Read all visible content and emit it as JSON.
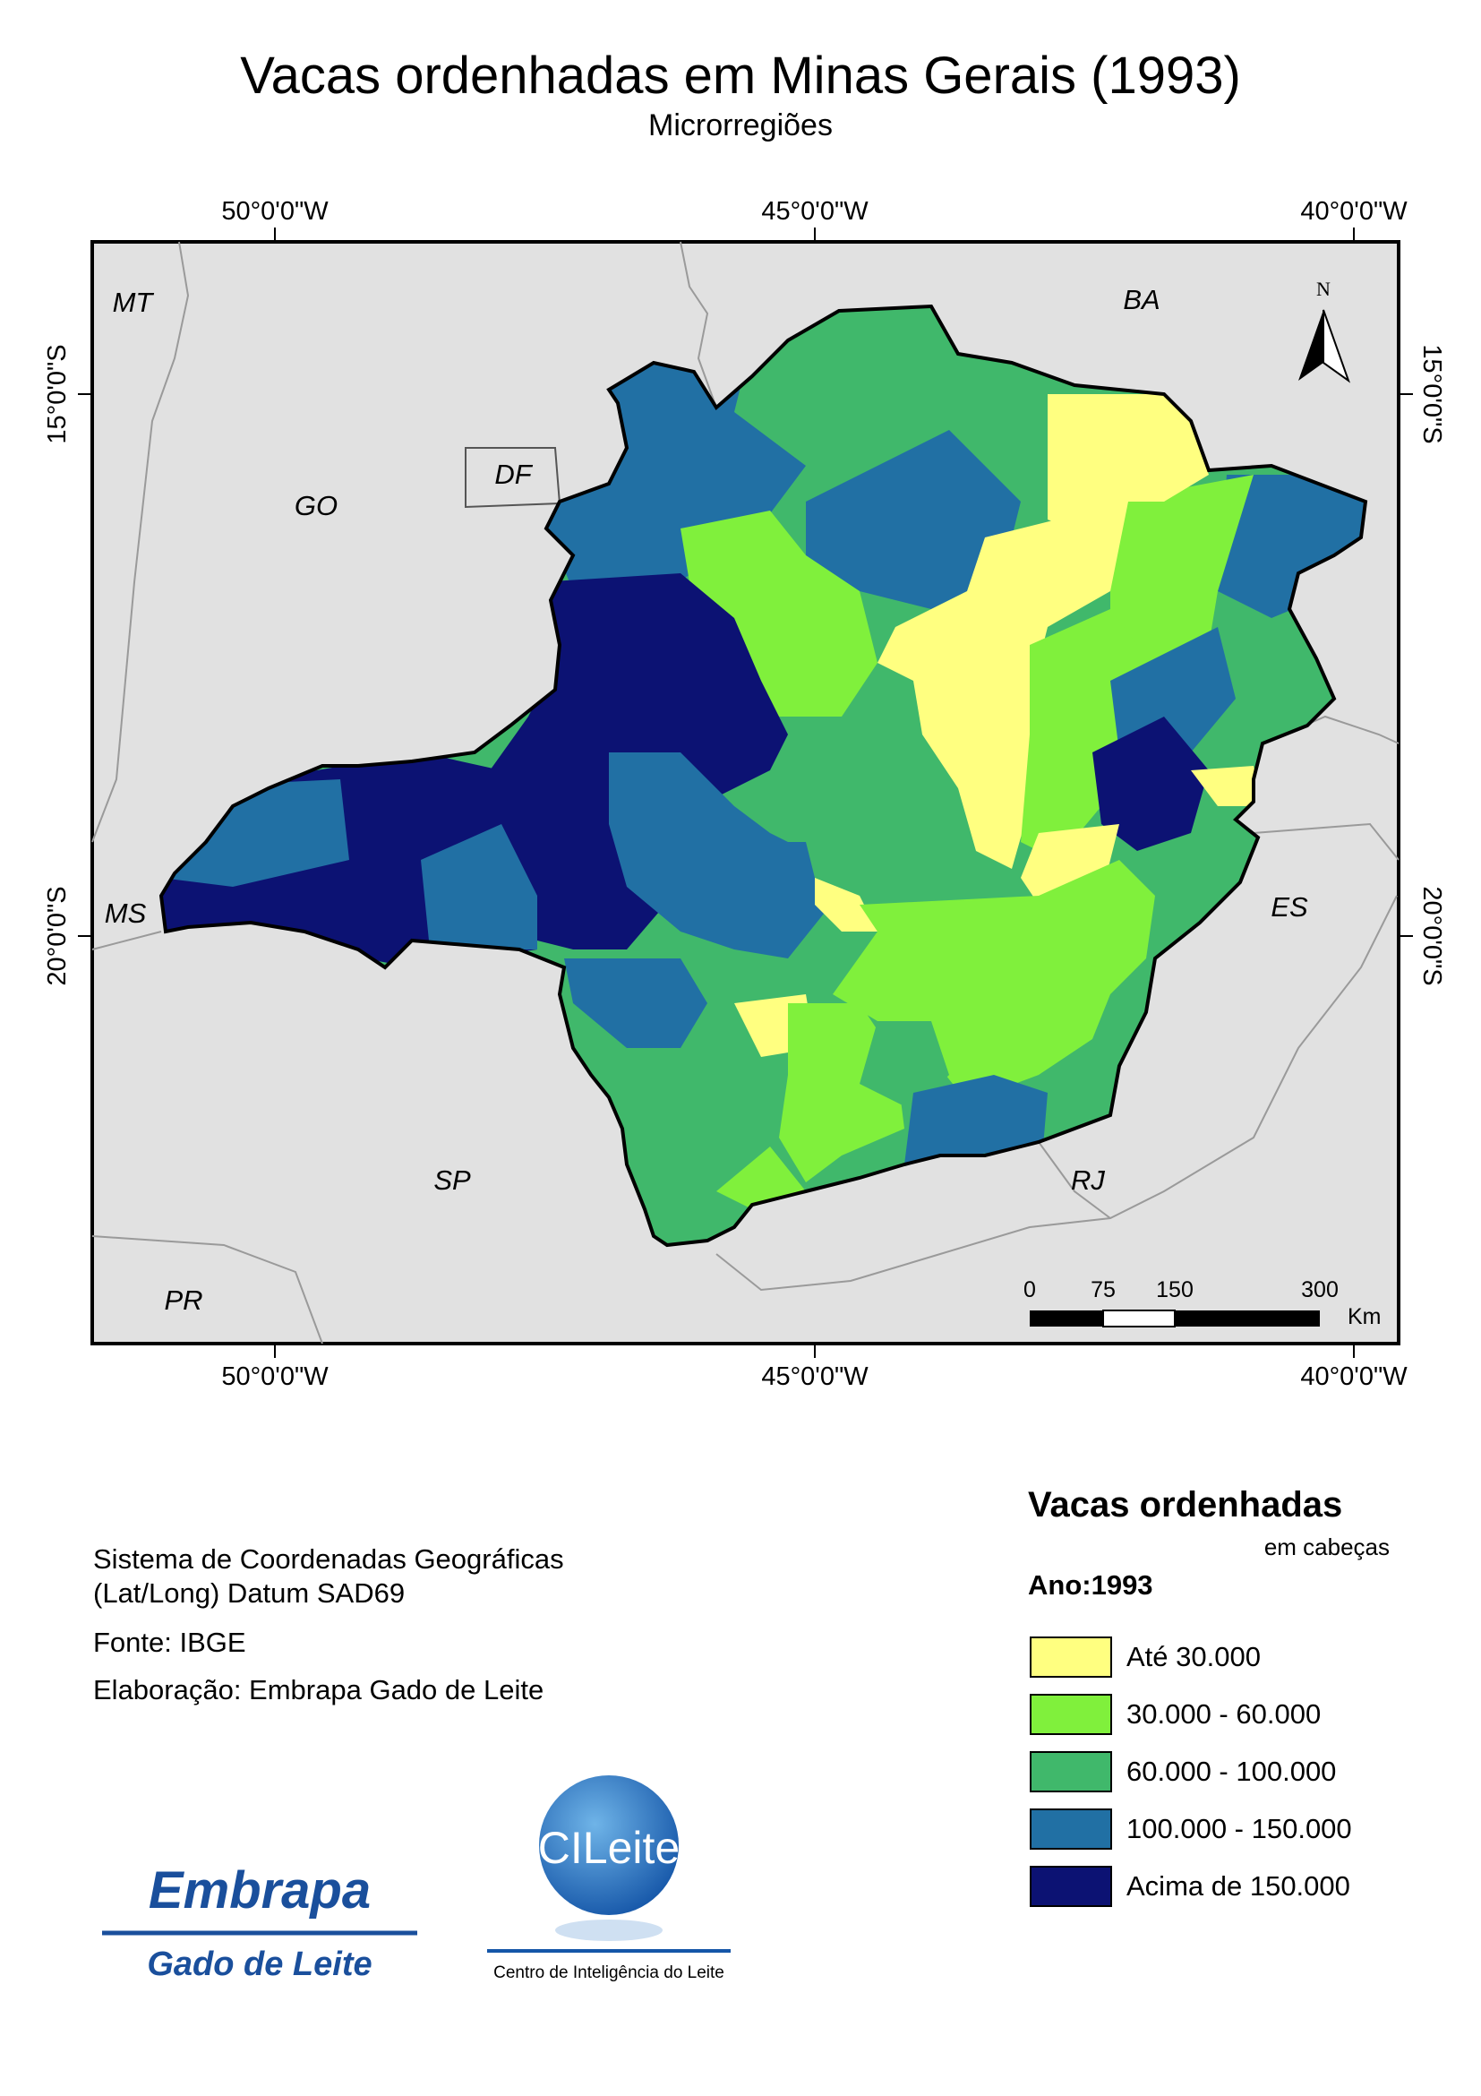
{
  "header": {
    "title": "Vacas ordenhadas em Minas Gerais (1993)",
    "subtitle": "Microrregiões"
  },
  "map": {
    "graticule": {
      "lon_top": [
        "50°0'0\"W",
        "45°0'0\"W",
        "40°0'0\"W"
      ],
      "lon_bottom": [
        "50°0'0\"W",
        "45°0'0\"W",
        "40°0'0\"W"
      ],
      "lat_left": [
        "15°0'0\"S",
        "20°0'0\"S"
      ],
      "lat_right": [
        "15°0'0\"S",
        "20°0'0\"S"
      ]
    },
    "states": [
      "MT",
      "BA",
      "GO",
      "DF",
      "MS",
      "ES",
      "SP",
      "RJ",
      "PR"
    ],
    "north_arrow": {
      "label": "N",
      "icon": "north-arrow-icon"
    },
    "scale_bar": {
      "ticks": [
        "0",
        "75",
        "150",
        "300"
      ],
      "unit": "Km"
    },
    "colors": {
      "background": "#e1e1e1",
      "border": "#000000"
    }
  },
  "info": {
    "crs_line1": "Sistema de Coordenadas Geográficas",
    "crs_line2": "(Lat/Long) Datum SAD69",
    "source": "Fonte: IBGE",
    "author": "Elaboração: Embrapa Gado de Leite"
  },
  "legend": {
    "title": "Vacas ordenhadas",
    "unit": "em cabeças",
    "year": "Ano:1993",
    "classes": [
      {
        "label": "Até 30.000",
        "color": "#ffff80"
      },
      {
        "label": "30.000 - 60.000",
        "color": "#80f03c"
      },
      {
        "label": "60.000 - 100.000",
        "color": "#40b86b"
      },
      {
        "label": "100.000 - 150.000",
        "color": "#2170a4"
      },
      {
        "label": "Acima de 150.000",
        "color": "#0c1273"
      }
    ]
  },
  "logos": {
    "embrapa": {
      "line1": "Embrapa",
      "line2": "Gado de Leite"
    },
    "cileite": {
      "name": "CILeite",
      "caption": "Centro de Inteligência do Leite"
    }
  }
}
